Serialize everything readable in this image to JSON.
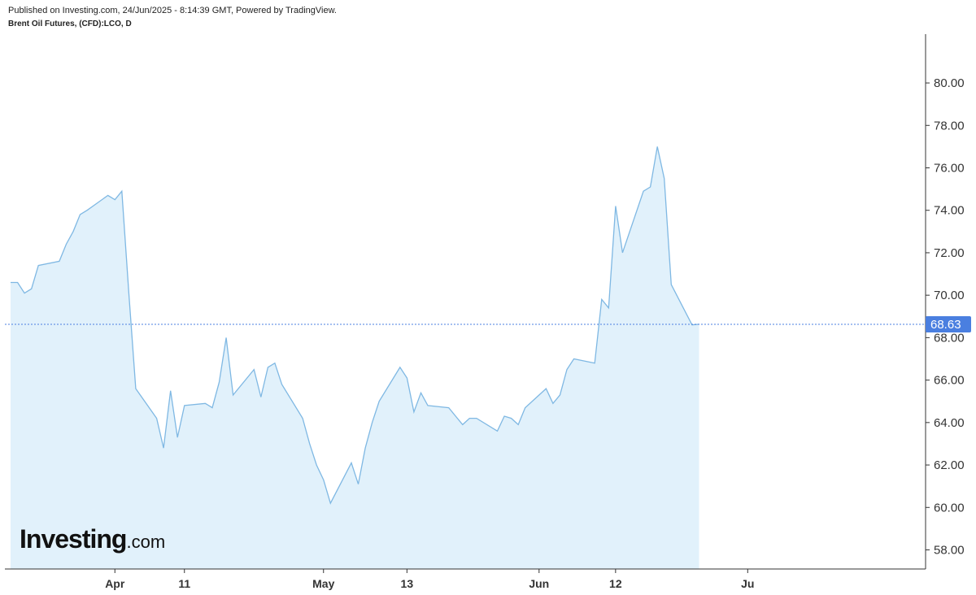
{
  "header": {
    "published": "Published on Investing.com, 24/Jun/2025 - 8:14:39 GMT, Powered by TradingView.",
    "symbol": "Brent Oil Futures, (CFD):LCO, D"
  },
  "logo": {
    "brand": "Investing",
    "suffix": ".com"
  },
  "colors": {
    "line": "#7fb8e3",
    "fill": "#e1f1fb",
    "last_label_bg": "#4a7fe0",
    "axis": "#333333"
  },
  "chart_data": {
    "type": "area",
    "ylim": [
      57.1,
      82.3
    ],
    "y_ticks": [
      "58.00",
      "60.00",
      "62.00",
      "64.00",
      "66.00",
      "68.00",
      "70.00",
      "72.00",
      "74.00",
      "76.00",
      "78.00",
      "80.00"
    ],
    "x_tick_labels": [
      {
        "label": "Apr",
        "date": "2025-04-01"
      },
      {
        "label": "11",
        "date": "2025-04-11"
      },
      {
        "label": "May",
        "date": "2025-05-01"
      },
      {
        "label": "13",
        "date": "2025-05-13"
      },
      {
        "label": "Jun",
        "date": "2025-06-01"
      },
      {
        "label": "12",
        "date": "2025-06-12"
      },
      {
        "label": "Ju",
        "date": "2025-07-01"
      }
    ],
    "last_value": 68.63,
    "last_value_label": "68.63",
    "series": [
      {
        "dates": [
          "2025-03-17",
          "2025-03-18",
          "2025-03-19",
          "2025-03-20",
          "2025-03-21",
          "2025-03-24",
          "2025-03-25",
          "2025-03-26",
          "2025-03-27",
          "2025-03-28",
          "2025-03-31",
          "2025-04-01",
          "2025-04-02",
          "2025-04-03",
          "2025-04-04",
          "2025-04-07",
          "2025-04-08",
          "2025-04-09",
          "2025-04-10",
          "2025-04-11",
          "2025-04-14",
          "2025-04-15",
          "2025-04-16",
          "2025-04-17",
          "2025-04-18",
          "2025-04-21",
          "2025-04-22",
          "2025-04-23",
          "2025-04-24",
          "2025-04-25",
          "2025-04-28",
          "2025-04-29",
          "2025-04-30",
          "2025-05-01",
          "2025-05-02",
          "2025-05-05",
          "2025-05-06",
          "2025-05-07",
          "2025-05-08",
          "2025-05-09",
          "2025-05-12",
          "2025-05-13",
          "2025-05-14",
          "2025-05-15",
          "2025-05-16",
          "2025-05-19",
          "2025-05-20",
          "2025-05-21",
          "2025-05-22",
          "2025-05-23",
          "2025-05-26",
          "2025-05-27",
          "2025-05-28",
          "2025-05-29",
          "2025-05-30",
          "2025-06-02",
          "2025-06-03",
          "2025-06-04",
          "2025-06-05",
          "2025-06-06",
          "2025-06-09",
          "2025-06-10",
          "2025-06-11",
          "2025-06-12",
          "2025-06-13",
          "2025-06-16",
          "2025-06-17",
          "2025-06-18",
          "2025-06-19",
          "2025-06-20",
          "2025-06-23",
          "2025-06-24"
        ],
        "values": [
          70.6,
          70.6,
          70.1,
          70.3,
          71.4,
          71.6,
          72.4,
          73.0,
          73.8,
          74.0,
          74.7,
          74.5,
          74.9,
          70.1,
          65.6,
          64.2,
          62.8,
          65.5,
          63.3,
          64.8,
          64.9,
          64.7,
          65.9,
          68.0,
          65.3,
          66.5,
          65.2,
          66.6,
          66.8,
          65.8,
          64.2,
          63.0,
          62.0,
          61.3,
          60.2,
          62.1,
          61.1,
          62.8,
          64.0,
          65.0,
          66.6,
          66.1,
          64.5,
          65.4,
          64.8,
          64.7,
          64.3,
          63.9,
          64.2,
          64.2,
          63.6,
          64.3,
          64.2,
          63.9,
          64.7,
          65.6,
          64.9,
          65.3,
          66.5,
          67.0,
          66.8,
          69.8,
          69.4,
          74.2,
          72.0,
          74.9,
          75.1,
          77.0,
          75.5,
          70.5,
          68.6,
          68.63
        ]
      }
    ]
  }
}
